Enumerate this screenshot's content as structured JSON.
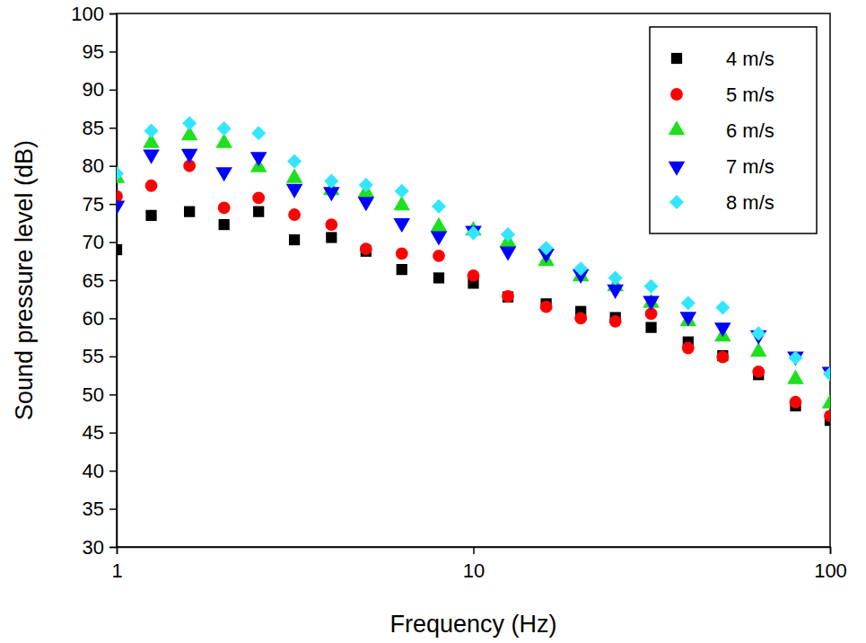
{
  "chart_data": {
    "type": "scatter",
    "x_label": "Frequency (Hz)",
    "y_label": "Sound pressure level (dB)",
    "log": "x",
    "grid": false,
    "legend": "top-right",
    "xlim": [
      1,
      100
    ],
    "xticks": [
      1,
      10,
      100
    ],
    "ylim": [
      30,
      100
    ],
    "yticks": [
      30,
      35,
      40,
      45,
      50,
      55,
      60,
      65,
      70,
      75,
      80,
      85,
      90,
      95,
      100
    ],
    "x": [
      1,
      1.25,
      1.6,
      2,
      2.5,
      3.15,
      4,
      5,
      6.3,
      8,
      10,
      12.5,
      16,
      20,
      25,
      31.5,
      40,
      50,
      63,
      80,
      100
    ],
    "series": [
      {
        "name": "4 m/s",
        "color": "#000000",
        "marker": "square",
        "values": [
          69,
          73.5,
          74,
          72.3,
          74,
          70.3,
          70.6,
          68.8,
          66.4,
          65.3,
          64.6,
          62.8,
          61.9,
          60.9,
          60.1,
          58.8,
          56.9,
          55.1,
          52.6,
          48.5,
          46.6
        ]
      },
      {
        "name": "5 m/s",
        "color": "#ff0000",
        "marker": "circle",
        "values": [
          76,
          77.4,
          80,
          74.5,
          75.8,
          73.6,
          72.3,
          69.1,
          68.5,
          68.2,
          65.6,
          62.9,
          61.5,
          60,
          59.6,
          60.6,
          56.1,
          54.9,
          53,
          49,
          47.2
        ]
      },
      {
        "name": "6 m/s",
        "color": "#1ee01e",
        "marker": "triangle-up",
        "values": [
          78.4,
          83,
          84,
          83,
          79.8,
          78.4,
          76.8,
          76.5,
          74.8,
          72,
          71.5,
          70,
          67.5,
          65.5,
          64.2,
          62,
          59.6,
          57.6,
          55.6,
          52,
          48.8
        ]
      },
      {
        "name": "7 m/s",
        "color": "#0000ff",
        "marker": "triangle-down",
        "values": [
          74.8,
          81.5,
          81.6,
          79.2,
          81.2,
          77,
          76.6,
          75.3,
          72.5,
          70.8,
          71.5,
          68.8,
          68.5,
          65.8,
          63.8,
          62.3,
          60.2,
          58.8,
          57.8,
          55,
          53
        ]
      },
      {
        "name": "8 m/s",
        "color": "#33e6ff",
        "marker": "diamond",
        "values": [
          79,
          84.6,
          85.6,
          84.9,
          84.3,
          80.6,
          78,
          77.5,
          76.7,
          74.7,
          71.2,
          71,
          69.2,
          66.5,
          65.3,
          64.2,
          62,
          61.4,
          58,
          54.8,
          52.7
        ]
      }
    ]
  }
}
